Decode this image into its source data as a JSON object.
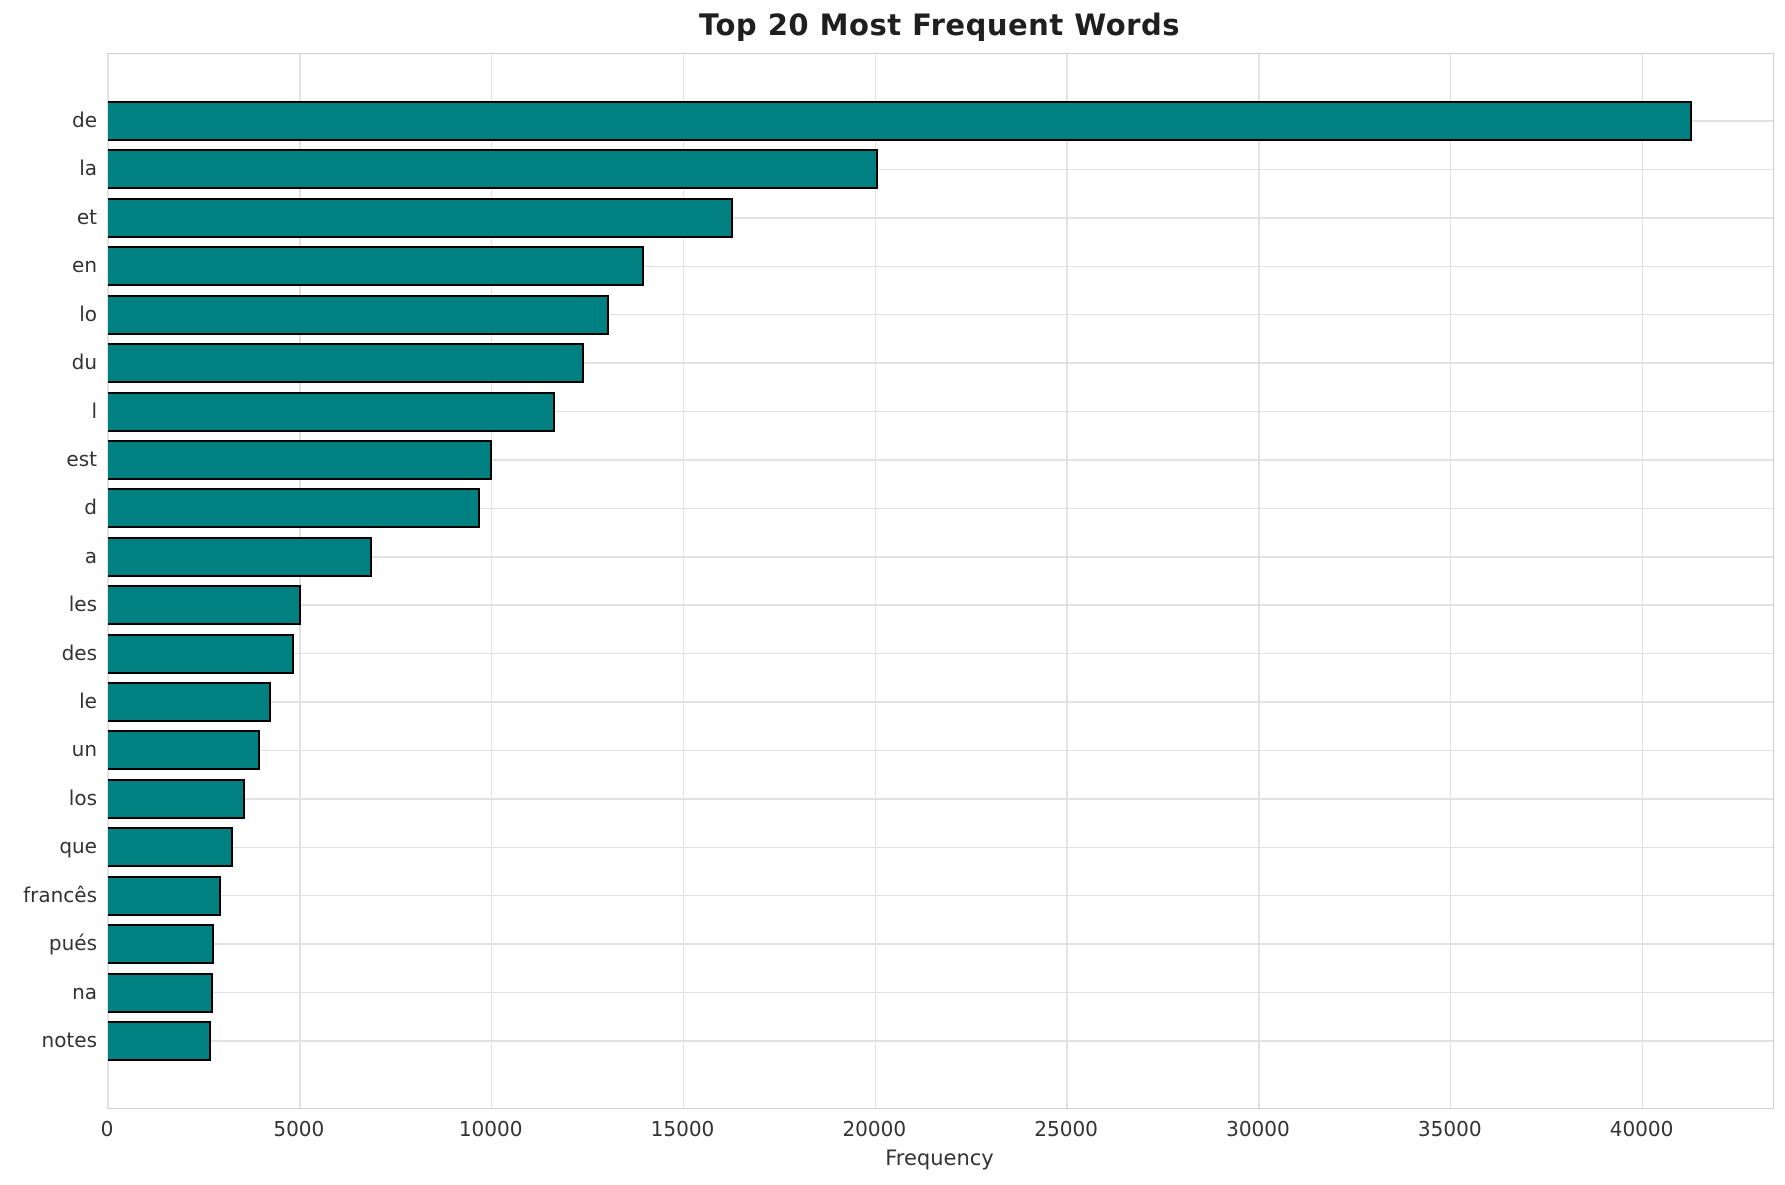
{
  "title": "Top 20 Most Frequent Words",
  "chart_data": {
    "type": "bar",
    "orientation": "horizontal",
    "title": "Top 20 Most Frequent Words",
    "xlabel": "Frequency",
    "ylabel": "",
    "categories": [
      "de",
      "la",
      "et",
      "en",
      "lo",
      "du",
      "l",
      "est",
      "d",
      "a",
      "les",
      "des",
      "le",
      "un",
      "los",
      "que",
      "francês",
      "pués",
      "na",
      "notes"
    ],
    "values": [
      41300,
      20060,
      16300,
      13960,
      13050,
      12400,
      11640,
      10000,
      9690,
      6870,
      5030,
      4840,
      4250,
      3960,
      3570,
      3250,
      2940,
      2760,
      2730,
      2680
    ],
    "xticks": [
      0,
      5000,
      10000,
      15000,
      20000,
      25000,
      30000,
      35000,
      40000
    ],
    "xlim": [
      0,
      43400
    ],
    "grid": true,
    "legend_position": "none",
    "bar_color": "#008080",
    "bar_edge_color": "#000000",
    "gridline_color": "#e2e2e2",
    "spine_color": "#cfcfcf",
    "text_color": "#333333",
    "title_color": "#1f1f1f",
    "background_color": "#ffffff"
  }
}
